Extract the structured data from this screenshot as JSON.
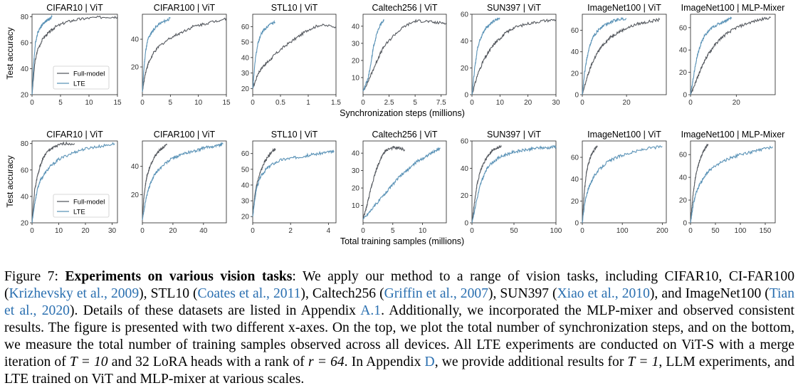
{
  "figure": {
    "top_xlabel": "Synchronization steps (millions)",
    "bottom_xlabel": "Total training samples (millions)",
    "ylabel": "Test accuracy",
    "legend": [
      "Full-model",
      "LTE"
    ],
    "colors": {
      "full": "#55595f",
      "lte": "#5b93b7"
    }
  },
  "chart_data": [
    {
      "type": "line",
      "row": "top",
      "title": "CIFAR10 | ViT",
      "xlim": [
        0,
        15
      ],
      "ylim": [
        20,
        82
      ],
      "xticks": [
        0,
        5,
        10,
        15
      ],
      "yticks": [
        20,
        40,
        60,
        80
      ],
      "ylabel": "Test accuracy",
      "legend": true,
      "series": [
        {
          "name": "Full-model",
          "x": [
            0,
            0.5,
            1,
            2,
            3,
            4,
            6,
            8,
            10,
            13,
            15
          ],
          "y": [
            20,
            45,
            55,
            64,
            68,
            72,
            76,
            78,
            79,
            80,
            80
          ]
        },
        {
          "name": "LTE",
          "x": [
            0,
            0.3,
            0.6,
            1,
            1.5,
            2,
            2.5,
            3,
            3.5
          ],
          "y": [
            20,
            45,
            60,
            68,
            72,
            75,
            77,
            78,
            80
          ]
        }
      ]
    },
    {
      "type": "line",
      "row": "top",
      "title": "CIFAR100 | ViT",
      "xlim": [
        0,
        15
      ],
      "ylim": [
        0,
        58
      ],
      "xticks": [
        0,
        5,
        10,
        15
      ],
      "yticks": [
        20,
        40
      ],
      "series": [
        {
          "name": "Full-model",
          "x": [
            0,
            0.5,
            1,
            2,
            3,
            5,
            7,
            9,
            11,
            13,
            15
          ],
          "y": [
            2,
            15,
            22,
            30,
            35,
            41,
            45,
            49,
            51,
            53,
            55
          ]
        },
        {
          "name": "LTE",
          "x": [
            0,
            0.3,
            0.6,
            1,
            1.5,
            2,
            3,
            4,
            5
          ],
          "y": [
            2,
            20,
            32,
            40,
            44,
            47,
            51,
            53,
            55
          ]
        }
      ]
    },
    {
      "type": "line",
      "row": "top",
      "title": "STL10 | ViT",
      "xlim": [
        0,
        1.5
      ],
      "ylim": [
        16,
        68
      ],
      "xticks": [
        0,
        0.5,
        1,
        1.5
      ],
      "yticks": [
        20,
        30,
        40,
        50,
        60
      ],
      "series": [
        {
          "name": "Full-model",
          "x": [
            0,
            0.1,
            0.2,
            0.3,
            0.4,
            0.6,
            0.8,
            1,
            1.2,
            1.5
          ],
          "y": [
            20,
            30,
            35,
            38,
            42,
            48,
            53,
            58,
            61,
            60
          ]
        },
        {
          "name": "LTE",
          "x": [
            0,
            0.05,
            0.1,
            0.15,
            0.2,
            0.3,
            0.4
          ],
          "y": [
            20,
            40,
            50,
            55,
            58,
            61,
            63
          ]
        }
      ]
    },
    {
      "type": "line",
      "row": "top",
      "title": "Caltech256 | ViT",
      "xlim": [
        0,
        8
      ],
      "ylim": [
        0,
        47
      ],
      "xticks": [
        0,
        2.5,
        5,
        7.5
      ],
      "yticks": [
        10,
        20,
        30,
        40
      ],
      "series": [
        {
          "name": "Full-model",
          "x": [
            0,
            0.5,
            1,
            1.5,
            2,
            3,
            4,
            5,
            6,
            7,
            8
          ],
          "y": [
            2,
            8,
            15,
            22,
            28,
            35,
            40,
            43,
            43,
            42,
            42
          ]
        },
        {
          "name": "LTE",
          "x": [
            0,
            0.2,
            0.5,
            0.8,
            1,
            1.3,
            1.6,
            2
          ],
          "y": [
            2,
            5,
            10,
            20,
            28,
            35,
            40,
            44
          ]
        }
      ]
    },
    {
      "type": "line",
      "row": "top",
      "title": "SUN397 | ViT",
      "xlim": [
        0,
        30
      ],
      "ylim": [
        0,
        60
      ],
      "xticks": [
        0,
        10,
        20,
        30
      ],
      "yticks": [
        0,
        20,
        40,
        60
      ],
      "series": [
        {
          "name": "Full-model",
          "x": [
            0,
            2,
            4,
            6,
            8,
            10,
            12,
            15,
            20,
            25,
            30
          ],
          "y": [
            0,
            15,
            25,
            32,
            38,
            42,
            46,
            50,
            53,
            55,
            56
          ]
        },
        {
          "name": "LTE",
          "x": [
            0,
            1,
            2,
            3,
            4,
            5,
            6,
            8,
            10
          ],
          "y": [
            0,
            20,
            35,
            42,
            46,
            50,
            52,
            55,
            57
          ]
        }
      ]
    },
    {
      "type": "line",
      "row": "top",
      "title": "ImageNet100 | ViT",
      "xlim": [
        0,
        38
      ],
      "ylim": [
        0,
        75
      ],
      "xticks": [
        0,
        20
      ],
      "yticks": [
        0,
        20,
        40,
        60
      ],
      "series": [
        {
          "name": "Full-model",
          "x": [
            0,
            2,
            4,
            6,
            8,
            10,
            13,
            16,
            20,
            25,
            30,
            35
          ],
          "y": [
            0,
            15,
            27,
            36,
            43,
            48,
            54,
            58,
            62,
            66,
            68,
            70
          ]
        },
        {
          "name": "LTE",
          "x": [
            0,
            1,
            2,
            3,
            4,
            5,
            6,
            8,
            10,
            13,
            16,
            20
          ],
          "y": [
            0,
            20,
            33,
            42,
            49,
            54,
            57,
            62,
            65,
            68,
            70,
            71
          ]
        }
      ]
    },
    {
      "type": "line",
      "row": "top",
      "title": "ImageNet100 | MLP-Mixer",
      "xlim": [
        0,
        37
      ],
      "ylim": [
        0,
        72
      ],
      "xticks": [
        0,
        20
      ],
      "yticks": [
        0,
        20,
        40,
        60
      ],
      "series": [
        {
          "name": "Full-model",
          "x": [
            0,
            2,
            4,
            6,
            8,
            10,
            13,
            16,
            20,
            25,
            30,
            35
          ],
          "y": [
            0,
            10,
            20,
            30,
            37,
            43,
            50,
            55,
            60,
            64,
            67,
            69
          ]
        },
        {
          "name": "LTE",
          "x": [
            0,
            1,
            2,
            3,
            4,
            5,
            6,
            8,
            10,
            13,
            16,
            18
          ],
          "y": [
            0,
            12,
            25,
            35,
            42,
            48,
            52,
            57,
            61,
            64,
            67,
            69
          ]
        }
      ]
    },
    {
      "type": "line",
      "row": "bottom",
      "title": "CIFAR10 | ViT",
      "xlim": [
        0,
        32
      ],
      "ylim": [
        20,
        82
      ],
      "xticks": [
        0,
        10,
        20,
        30
      ],
      "yticks": [
        20,
        40,
        60,
        80
      ],
      "ylabel": "Test accuracy",
      "legend": true,
      "series": [
        {
          "name": "Full-model",
          "x": [
            0,
            1,
            2,
            3,
            4,
            5,
            7,
            9,
            12,
            16
          ],
          "y": [
            20,
            45,
            55,
            63,
            68,
            72,
            76,
            78,
            80,
            80
          ]
        },
        {
          "name": "LTE",
          "x": [
            0,
            1,
            2,
            3,
            5,
            7,
            10,
            14,
            18,
            22,
            26,
            31
          ],
          "y": [
            20,
            35,
            45,
            52,
            58,
            63,
            68,
            72,
            75,
            77,
            78,
            80
          ]
        }
      ]
    },
    {
      "type": "line",
      "row": "bottom",
      "title": "CIFAR100 | ViT",
      "xlim": [
        0,
        55
      ],
      "ylim": [
        0,
        58
      ],
      "xticks": [
        0,
        20,
        40
      ],
      "yticks": [
        20,
        40
      ],
      "series": [
        {
          "name": "Full-model",
          "x": [
            0,
            1,
            2,
            3,
            5,
            7,
            10,
            13,
            16
          ],
          "y": [
            2,
            18,
            27,
            33,
            40,
            45,
            50,
            53,
            55
          ]
        },
        {
          "name": "LTE",
          "x": [
            0,
            2,
            4,
            6,
            8,
            10,
            15,
            20,
            25,
            30,
            35,
            40,
            45,
            50,
            53
          ],
          "y": [
            2,
            15,
            24,
            30,
            34,
            37,
            42,
            46,
            48,
            50,
            51,
            53,
            54,
            55,
            56
          ]
        }
      ]
    },
    {
      "type": "line",
      "row": "bottom",
      "title": "STL10 | ViT",
      "xlim": [
        0,
        4.4
      ],
      "ylim": [
        16,
        68
      ],
      "xticks": [
        0,
        2,
        4
      ],
      "yticks": [
        20,
        30,
        40,
        50,
        60
      ],
      "series": [
        {
          "name": "Full-model",
          "x": [
            0,
            0.1,
            0.2,
            0.4,
            0.6,
            0.8,
            1,
            1.2
          ],
          "y": [
            20,
            32,
            40,
            48,
            54,
            58,
            61,
            63
          ]
        },
        {
          "name": "LTE",
          "x": [
            0,
            0.1,
            0.2,
            0.4,
            0.7,
            1,
            1.5,
            2,
            2.5,
            3,
            3.5,
            4,
            4.3
          ],
          "y": [
            20,
            30,
            38,
            45,
            50,
            53,
            56,
            57,
            58,
            59,
            60,
            61,
            61
          ]
        }
      ]
    },
    {
      "type": "line",
      "row": "bottom",
      "title": "Caltech256 | ViT",
      "xlim": [
        0,
        14
      ],
      "ylim": [
        0,
        47
      ],
      "xticks": [
        0,
        5,
        10
      ],
      "yticks": [
        10,
        20,
        30,
        40
      ],
      "series": [
        {
          "name": "Full-model",
          "x": [
            0,
            0.5,
            1,
            1.5,
            2,
            2.5,
            3,
            3.5,
            4,
            5,
            6,
            7
          ],
          "y": [
            2,
            8,
            15,
            22,
            28,
            33,
            37,
            40,
            42,
            43,
            43,
            42
          ]
        },
        {
          "name": "LTE",
          "x": [
            0,
            1,
            2,
            3,
            4,
            5,
            6,
            7,
            8,
            9,
            10,
            11,
            12,
            13
          ],
          "y": [
            2,
            6,
            10,
            14,
            18,
            22,
            26,
            29,
            32,
            35,
            37,
            39,
            41,
            43
          ]
        }
      ]
    },
    {
      "type": "line",
      "row": "bottom",
      "title": "SUN397 | ViT",
      "xlim": [
        0,
        100
      ],
      "ylim": [
        0,
        60
      ],
      "xticks": [
        0,
        50,
        100
      ],
      "yticks": [
        0,
        20,
        40,
        60
      ],
      "series": [
        {
          "name": "Full-model",
          "x": [
            0,
            3,
            6,
            10,
            15,
            20,
            25,
            30,
            35
          ],
          "y": [
            0,
            15,
            28,
            38,
            45,
            50,
            53,
            55,
            56
          ]
        },
        {
          "name": "LTE",
          "x": [
            0,
            5,
            10,
            15,
            20,
            30,
            40,
            50,
            60,
            70,
            80,
            90,
            100
          ],
          "y": [
            0,
            15,
            28,
            36,
            42,
            47,
            50,
            52,
            53,
            54,
            55,
            55,
            56
          ]
        }
      ]
    },
    {
      "type": "line",
      "row": "bottom",
      "title": "ImageNet100 | ViT",
      "xlim": [
        0,
        210
      ],
      "ylim": [
        0,
        75
      ],
      "xticks": [
        0,
        100,
        200
      ],
      "yticks": [
        0,
        20,
        40,
        60
      ],
      "series": [
        {
          "name": "Full-model",
          "x": [
            0,
            3,
            6,
            10,
            15,
            20,
            25,
            30,
            38
          ],
          "y": [
            0,
            18,
            32,
            45,
            54,
            60,
            64,
            67,
            70
          ]
        },
        {
          "name": "LTE",
          "x": [
            0,
            5,
            10,
            20,
            30,
            40,
            60,
            80,
            100,
            130,
            160,
            200
          ],
          "y": [
            0,
            15,
            25,
            36,
            43,
            48,
            55,
            59,
            62,
            65,
            68,
            70
          ]
        }
      ]
    },
    {
      "type": "line",
      "row": "bottom",
      "title": "ImageNet100 | MLP-Mixer",
      "xlim": [
        0,
        170
      ],
      "ylim": [
        0,
        72
      ],
      "xticks": [
        0,
        50,
        100,
        150
      ],
      "yticks": [
        0,
        20,
        40,
        60
      ],
      "series": [
        {
          "name": "Full-model",
          "x": [
            0,
            3,
            6,
            10,
            15,
            20,
            25,
            30,
            36
          ],
          "y": [
            0,
            15,
            28,
            40,
            50,
            57,
            62,
            66,
            69
          ]
        },
        {
          "name": "LTE",
          "x": [
            0,
            5,
            10,
            20,
            30,
            40,
            60,
            80,
            100,
            120,
            140,
            165
          ],
          "y": [
            0,
            15,
            25,
            35,
            42,
            47,
            53,
            57,
            60,
            62,
            64,
            67
          ]
        }
      ]
    }
  ],
  "caption": {
    "label": "Figure 7:",
    "title": "Experiments on various vision tasks",
    "t1": ": We apply our method to a range of vision tasks, including CIFAR10, CI-FAR100 (",
    "r1": "Krizhevsky et al., 2009",
    "t2": "), STL10 (",
    "r2": "Coates et al., 2011",
    "t3": "), Caltech256 (",
    "r3": "Griffin et al., 2007",
    "t4": "), SUN397 (",
    "r4": "Xiao et al., 2010",
    "t5": "), and ImageNet100 (",
    "r5": "Tian et al., 2020",
    "t6": "). Details of these datasets are listed in Appendix ",
    "r6": "A.1",
    "t7": ". Additionally, we incorporated the MLP-mixer and observed consistent results. The figure is presented with two different x-axes. On the top, we plot the total number of synchronization steps, and on the bottom, we measure the total number of training samples observed across all devices. All LTE experiments are conducted on ViT-S with a merge iteration of ",
    "m1": "T = 10",
    "t8": " and 32 LoRA heads with a rank of ",
    "m2": "r = 64",
    "t9": ". In Appendix ",
    "r7": "D",
    "t10": ", we provide additional results for ",
    "m3": "T = 1",
    "t11": ", LLM experiments, and LTE trained on ViT and MLP-mixer at various scales."
  }
}
